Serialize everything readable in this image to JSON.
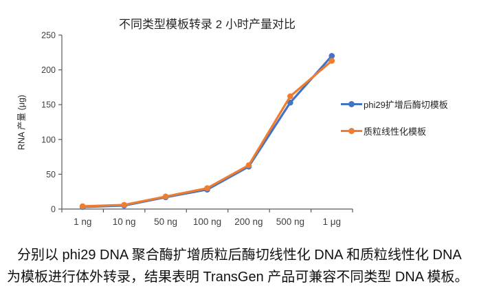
{
  "chart_data": {
    "type": "line",
    "title": "不同类型模板转录 2 小时产量对比",
    "ylabel": "RNA 产量 (μg)",
    "xlabel": "",
    "ylim": [
      0,
      250
    ],
    "yticks": [
      0,
      50,
      100,
      150,
      200,
      250
    ],
    "categories": [
      "1 ng",
      "10 ng",
      "50 ng",
      "100 ng",
      "200 ng",
      "500 ng",
      "1 μg"
    ],
    "series": [
      {
        "name": "phi29扩增后酶切模板",
        "color": "#4472C4",
        "values": [
          3,
          5,
          17,
          28,
          61,
          153,
          220
        ]
      },
      {
        "name": "质粒线性化模板",
        "color": "#ED7D31",
        "values": [
          4,
          6,
          18,
          30,
          63,
          162,
          213
        ]
      }
    ],
    "grid": false,
    "legend_position": "right",
    "axis_color": "#595959",
    "tick_label_color": "#3f3f3f"
  },
  "caption": {
    "line1": "分别以 phi29 DNA 聚合酶扩增质粒后酶切线性化 DNA 和质粒线性化 DNA",
    "line2": "为模板进行体外转录，结果表明 TransGen 产品可兼容不同类型 DNA 模板。"
  }
}
